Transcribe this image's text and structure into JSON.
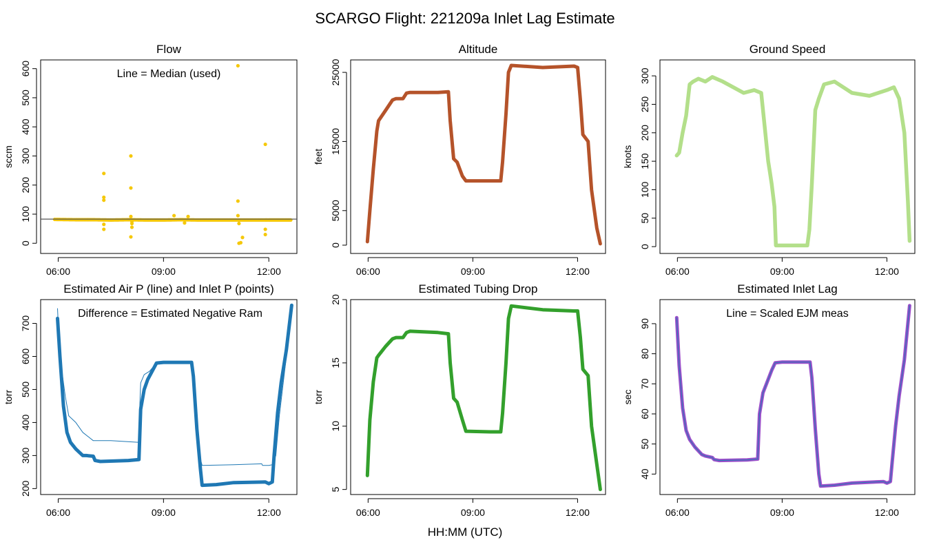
{
  "figure": {
    "title": "SCARGO Flight: 221209a  Inlet Lag Estimate",
    "xlabel": "HH:MM (UTC)"
  },
  "colors": {
    "flow": "#f5c80a",
    "flow_line": "#555555",
    "altitude": "#b5532a",
    "ground_speed": "#b3df8a",
    "pressure": "#1f78b4",
    "tubing": "#33a02c",
    "lag_points": "#9a4fc9",
    "lag_line": "#1f78b4"
  },
  "chart_data": [
    {
      "id": "flow",
      "type": "scatter",
      "title": "Flow",
      "ylabel": "sccm",
      "annotation": "Line = Median (used)",
      "x_ticks": [
        "06:00",
        "09:00",
        "12:00"
      ],
      "xlim_hours": [
        5.5,
        12.8
      ],
      "ylim": [
        -35,
        630
      ],
      "y_ticks": [
        0,
        100,
        200,
        300,
        400,
        500,
        600
      ],
      "series": [
        {
          "name": "points",
          "style": "points-dense",
          "x": [
            5.9,
            6.5,
            7.0,
            7.5,
            8.0,
            8.5,
            9.0,
            9.5,
            10.0,
            10.5,
            11.0,
            11.5,
            12.0,
            12.3,
            12.65
          ],
          "y": [
            82,
            81,
            81,
            80,
            81,
            80,
            80,
            81,
            80,
            80,
            80,
            80,
            80,
            80,
            80
          ]
        },
        {
          "name": "outliers",
          "style": "points",
          "x": [
            7.3,
            7.3,
            7.3,
            7.3,
            7.3,
            8.07,
            8.07,
            8.07,
            8.07,
            8.1,
            8.1,
            8.1,
            9.3,
            9.6,
            9.7,
            11.12,
            11.12,
            11.12,
            11.15,
            11.15,
            11.2,
            11.25,
            11.9,
            11.92,
            11.9,
            11.9
          ],
          "y": [
            240,
            158,
            148,
            65,
            48,
            300,
            190,
            22,
            92,
            75,
            68,
            55,
            95,
            70,
            92,
            610,
            145,
            95,
            68,
            0,
            2,
            20,
            340,
            80,
            48,
            30
          ]
        },
        {
          "name": "Median",
          "style": "hline",
          "y": 83
        }
      ]
    },
    {
      "id": "altitude",
      "type": "line",
      "title": "Altitude",
      "ylabel": "feet",
      "x_ticks": [
        "06:00",
        "09:00",
        "12:00"
      ],
      "xlim_hours": [
        5.5,
        12.8
      ],
      "ylim": [
        -1200,
        26800
      ],
      "y_ticks": [
        0,
        5000,
        15000,
        25000
      ],
      "series": [
        {
          "name": "Altitude",
          "style": "thick-line",
          "x": [
            5.98,
            6.05,
            6.15,
            6.25,
            6.3,
            6.5,
            6.7,
            6.8,
            7.0,
            7.1,
            7.2,
            8.0,
            8.3,
            8.35,
            8.45,
            8.55,
            8.7,
            8.8,
            9.5,
            9.8,
            9.85,
            9.95,
            10.02,
            10.1,
            11.0,
            11.9,
            12.0,
            12.08,
            12.15,
            12.3,
            12.4,
            12.55,
            12.65
          ],
          "y": [
            500,
            5000,
            11000,
            16500,
            18000,
            19500,
            21000,
            21200,
            21200,
            22000,
            22100,
            22100,
            22200,
            18000,
            12500,
            12000,
            10000,
            9300,
            9300,
            9300,
            12000,
            19000,
            25000,
            26000,
            25700,
            25900,
            25700,
            21000,
            16000,
            15000,
            8000,
            2500,
            200
          ]
        }
      ]
    },
    {
      "id": "ground_speed",
      "type": "line",
      "title": "Ground Speed",
      "ylabel": "knots",
      "x_ticks": [
        "06:00",
        "09:00",
        "12:00"
      ],
      "xlim_hours": [
        5.5,
        12.8
      ],
      "ylim": [
        -12,
        328
      ],
      "y_ticks": [
        0,
        50,
        100,
        150,
        200,
        250,
        300
      ],
      "series": [
        {
          "name": "Ground Speed",
          "style": "thick-line",
          "x": [
            5.98,
            6.05,
            6.15,
            6.25,
            6.35,
            6.45,
            6.6,
            6.8,
            7.0,
            7.3,
            7.6,
            7.9,
            8.2,
            8.4,
            8.5,
            8.6,
            8.65,
            8.7,
            8.78,
            8.82,
            9.0,
            9.5,
            9.72,
            9.78,
            9.85,
            9.95,
            10.05,
            10.2,
            10.5,
            11.0,
            11.5,
            12.0,
            12.2,
            12.35,
            12.5,
            12.6,
            12.65
          ],
          "y": [
            160,
            165,
            200,
            230,
            285,
            290,
            295,
            290,
            298,
            290,
            280,
            270,
            275,
            270,
            210,
            150,
            130,
            110,
            70,
            2,
            2,
            2,
            2,
            30,
            110,
            240,
            260,
            285,
            290,
            270,
            265,
            275,
            280,
            260,
            200,
            80,
            10
          ]
        }
      ]
    },
    {
      "id": "pressure",
      "type": "line",
      "title": "Estimated Air P (line) and Inlet P (points)",
      "ylabel": "torr",
      "annotation": "Difference = Estimated Negative Ram",
      "x_ticks": [
        "06:00",
        "09:00",
        "12:00"
      ],
      "xlim_hours": [
        5.5,
        12.8
      ],
      "ylim": [
        182,
        772
      ],
      "y_ticks": [
        200,
        300,
        400,
        500,
        600,
        700
      ],
      "series": [
        {
          "name": "Air P",
          "style": "thin-line",
          "x": [
            5.98,
            6.0,
            6.1,
            6.2,
            6.3,
            6.5,
            6.7,
            7.0,
            7.5,
            8.3,
            8.32,
            8.35,
            8.45,
            8.6,
            8.8,
            9.0,
            9.8,
            9.85,
            9.95,
            10.05,
            10.1,
            11.0,
            11.8,
            11.82,
            12.0,
            12.1,
            12.2,
            12.3,
            12.5,
            12.65
          ],
          "y": [
            745,
            700,
            560,
            480,
            420,
            400,
            370,
            345,
            345,
            340,
            440,
            520,
            545,
            555,
            580,
            583,
            583,
            540,
            400,
            290,
            270,
            272,
            275,
            270,
            270,
            272,
            300,
            420,
            600,
            752
          ]
        },
        {
          "name": "Inlet P",
          "style": "thick-line",
          "x": [
            5.98,
            6.05,
            6.15,
            6.25,
            6.35,
            6.5,
            6.7,
            6.8,
            7.0,
            7.05,
            7.2,
            8.0,
            8.3,
            8.35,
            8.45,
            8.55,
            8.7,
            8.8,
            9.0,
            9.5,
            9.8,
            9.85,
            9.95,
            10.05,
            10.1,
            10.5,
            11.0,
            11.9,
            12.0,
            12.1,
            12.15,
            12.25,
            12.35,
            12.5,
            12.65
          ],
          "y": [
            715,
            600,
            450,
            370,
            340,
            320,
            300,
            300,
            298,
            285,
            282,
            285,
            288,
            440,
            500,
            530,
            560,
            580,
            582,
            582,
            582,
            540,
            380,
            260,
            210,
            212,
            218,
            220,
            215,
            220,
            300,
            430,
            520,
            620,
            755
          ]
        }
      ]
    },
    {
      "id": "tubing",
      "type": "line",
      "title": "Estimated Tubing Drop",
      "ylabel": "torr",
      "x_ticks": [
        "06:00",
        "09:00",
        "12:00"
      ],
      "xlim_hours": [
        5.5,
        12.8
      ],
      "ylim": [
        4.6,
        20.0
      ],
      "y_ticks": [
        5,
        10,
        15,
        20
      ],
      "series": [
        {
          "name": "Tubing Drop",
          "style": "thick-line",
          "x": [
            5.98,
            6.05,
            6.15,
            6.25,
            6.3,
            6.5,
            6.7,
            6.8,
            7.0,
            7.1,
            7.2,
            8.0,
            8.3,
            8.35,
            8.45,
            8.55,
            8.7,
            8.8,
            9.5,
            9.8,
            9.85,
            9.95,
            10.02,
            10.1,
            11.0,
            11.9,
            12.0,
            12.08,
            12.15,
            12.3,
            12.4,
            12.55,
            12.65
          ],
          "y": [
            6.1,
            10.5,
            13.5,
            15.4,
            15.6,
            16.3,
            16.9,
            17.0,
            17.0,
            17.4,
            17.5,
            17.4,
            17.3,
            15.0,
            12.2,
            11.9,
            10.5,
            9.6,
            9.55,
            9.55,
            11.0,
            15.0,
            18.5,
            19.5,
            19.2,
            19.1,
            19.1,
            17.0,
            14.5,
            14.0,
            10.0,
            7.0,
            5.0
          ]
        }
      ]
    },
    {
      "id": "inlet_lag",
      "type": "line",
      "title": "Estimated Inlet Lag",
      "ylabel": "sec",
      "annotation": "Line = Scaled EJM meas",
      "x_ticks": [
        "06:00",
        "09:00",
        "12:00"
      ],
      "xlim_hours": [
        5.5,
        12.8
      ],
      "ylim": [
        33.2,
        98.0
      ],
      "y_ticks": [
        40,
        50,
        60,
        70,
        80,
        90
      ],
      "series": [
        {
          "name": "Lag",
          "style": "thick-line-purple",
          "x": [
            5.98,
            6.05,
            6.15,
            6.25,
            6.35,
            6.5,
            6.7,
            6.8,
            7.0,
            7.05,
            7.2,
            8.0,
            8.3,
            8.35,
            8.45,
            8.55,
            8.7,
            8.8,
            9.0,
            9.5,
            9.8,
            9.85,
            9.95,
            10.05,
            10.1,
            10.5,
            11.0,
            11.9,
            12.0,
            12.1,
            12.15,
            12.25,
            12.35,
            12.5,
            12.65
          ],
          "y": [
            92,
            76,
            62,
            54.5,
            51.5,
            49,
            46.5,
            46,
            45.5,
            44.8,
            44.5,
            44.7,
            45,
            60,
            67,
            70,
            74.5,
            77,
            77.2,
            77.2,
            77.2,
            72,
            55,
            40,
            36,
            36.3,
            37,
            37.5,
            37,
            37.5,
            44,
            56,
            66,
            78,
            96
          ]
        },
        {
          "name": "Scaled EJM meas",
          "style": "thin-line",
          "x": [
            5.98,
            6.05,
            6.15,
            6.25,
            6.35,
            6.5,
            6.7,
            6.8,
            7.0,
            7.05,
            7.2,
            8.0,
            8.3,
            8.35,
            8.45,
            8.55,
            8.7,
            8.8,
            9.0,
            9.5,
            9.8,
            9.85,
            9.95,
            10.05,
            10.1,
            10.5,
            11.0,
            11.9,
            12.0,
            12.1,
            12.15,
            12.25,
            12.35,
            12.5,
            12.65
          ],
          "y": [
            92,
            76,
            62,
            54.5,
            51.5,
            49,
            46.5,
            46,
            45.5,
            44.8,
            44.5,
            44.7,
            45,
            60,
            67,
            70,
            74.5,
            77,
            77.2,
            77.2,
            77.2,
            72,
            55,
            40,
            36,
            36.3,
            37,
            37.5,
            37,
            37.5,
            44,
            56,
            66,
            78,
            96
          ]
        }
      ]
    }
  ]
}
